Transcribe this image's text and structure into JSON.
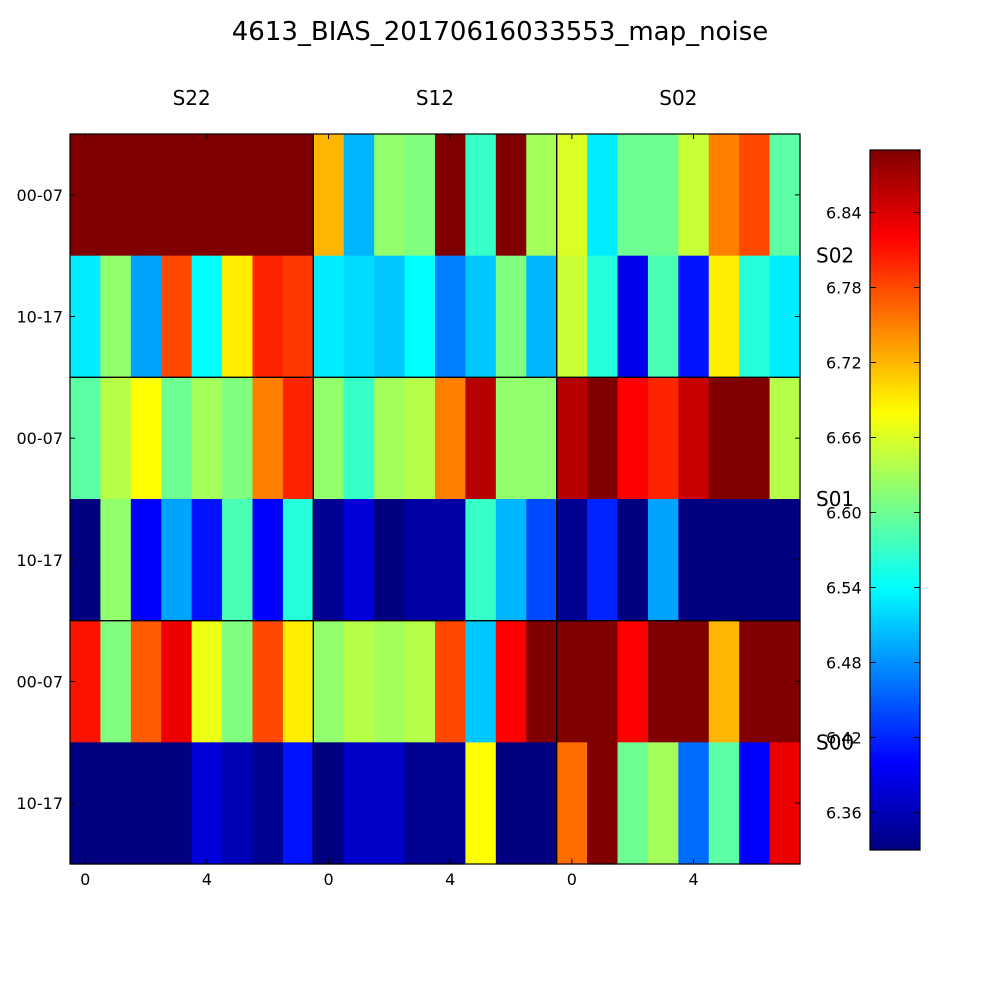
{
  "chart_data": {
    "type": "heatmap",
    "title": "4613_BIAS_20170616033553_map_noise",
    "column_groups": [
      "S22",
      "S12",
      "S02"
    ],
    "row_groups": [
      "S02",
      "S01",
      "S00"
    ],
    "row_tick_labels": [
      "00-07",
      "10-17",
      "00-07",
      "10-17",
      "00-07",
      "10-17"
    ],
    "x_tick_labels": [
      "0",
      "4"
    ],
    "x_tick_positions": [
      0,
      4
    ],
    "columns_per_group": 8,
    "colorbar": {
      "colormap": "jet",
      "vmin": 6.33,
      "vmax": 6.89,
      "ticks": [
        6.36,
        6.42,
        6.48,
        6.54,
        6.6,
        6.66,
        6.72,
        6.78,
        6.84
      ],
      "tick_labels": [
        "6.36",
        "6.42",
        "6.48",
        "6.54",
        "6.60",
        "6.66",
        "6.72",
        "6.78",
        "6.84"
      ]
    },
    "values": [
      [
        6.89,
        6.89,
        6.89,
        6.89,
        6.89,
        6.89,
        6.89,
        6.89,
        6.72,
        6.5,
        6.62,
        6.61,
        6.89,
        6.57,
        6.89,
        6.63,
        6.66,
        6.53,
        6.6,
        6.6,
        6.65,
        6.75,
        6.78,
        6.59
      ],
      [
        6.53,
        6.62,
        6.49,
        6.78,
        6.54,
        6.69,
        6.8,
        6.79,
        6.53,
        6.52,
        6.51,
        6.54,
        6.47,
        6.51,
        6.61,
        6.5,
        6.65,
        6.56,
        6.39,
        6.58,
        6.41,
        6.69,
        6.56,
        6.53
      ],
      [
        6.59,
        6.64,
        6.68,
        6.6,
        6.63,
        6.61,
        6.75,
        6.8,
        6.62,
        6.57,
        6.63,
        6.64,
        6.75,
        6.86,
        6.62,
        6.62,
        6.86,
        6.89,
        6.82,
        6.8,
        6.85,
        6.89,
        6.89,
        6.64
      ],
      [
        6.33,
        6.62,
        6.4,
        6.49,
        6.41,
        6.58,
        6.4,
        6.56,
        6.34,
        6.38,
        6.33,
        6.35,
        6.35,
        6.57,
        6.5,
        6.44,
        6.34,
        6.42,
        6.33,
        6.49,
        6.33,
        6.33,
        6.33,
        6.33
      ],
      [
        6.81,
        6.61,
        6.77,
        6.83,
        6.67,
        6.61,
        6.78,
        6.69,
        6.62,
        6.64,
        6.63,
        6.64,
        6.78,
        6.51,
        6.82,
        6.89,
        6.89,
        6.89,
        6.82,
        6.89,
        6.89,
        6.72,
        6.89,
        6.89
      ],
      [
        6.33,
        6.33,
        6.33,
        6.33,
        6.38,
        6.36,
        6.34,
        6.41,
        6.33,
        6.37,
        6.37,
        6.34,
        6.34,
        6.68,
        6.33,
        6.33,
        6.76,
        6.89,
        6.6,
        6.63,
        6.46,
        6.59,
        6.4,
        6.83
      ]
    ]
  }
}
